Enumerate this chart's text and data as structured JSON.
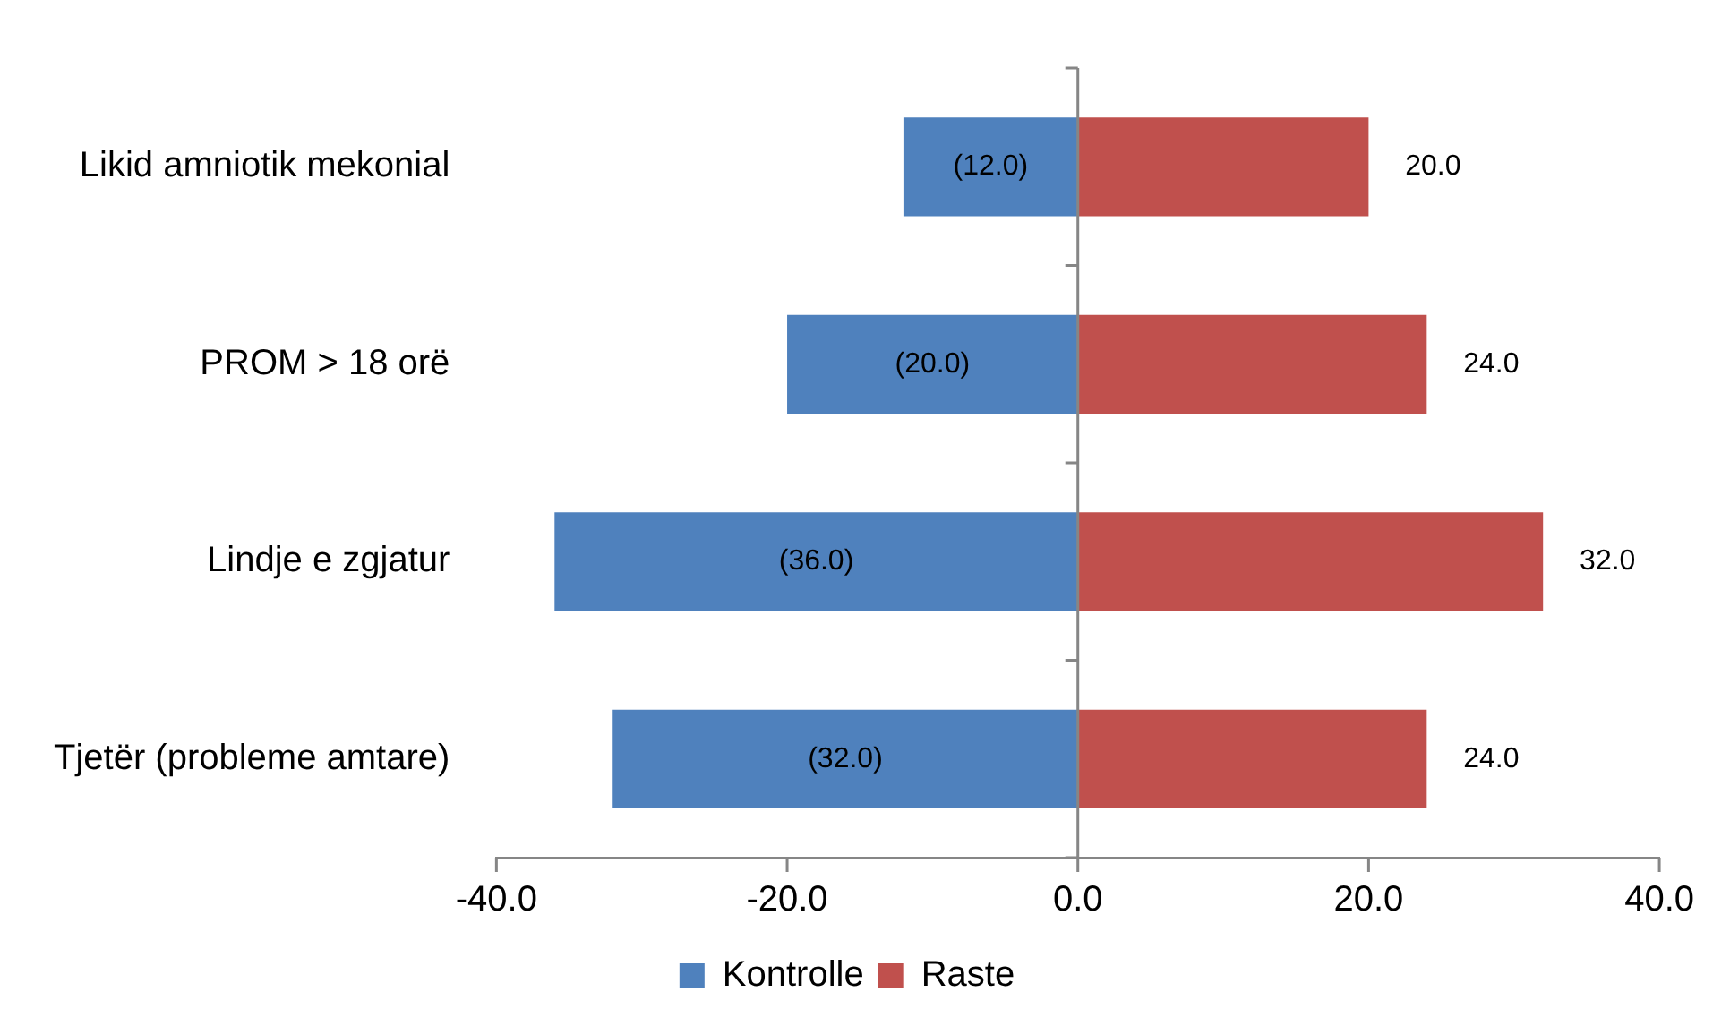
{
  "chart_data": {
    "type": "bar",
    "orientation": "horizontal",
    "stacked": true,
    "categories": [
      "Likid amniotik mekonial",
      "PROM > 18 orë",
      "Lindje e zgjatur",
      "Tjetër (probleme amtare)"
    ],
    "series": [
      {
        "name": "Kontrolle",
        "color": "#4f81bd",
        "values": [
          -12,
          -20,
          -36,
          -32
        ],
        "value_labels": [
          "(12.0)",
          "(20.0)",
          "(36.0)",
          "(32.0)"
        ]
      },
      {
        "name": "Raste",
        "color": "#c0504d",
        "values": [
          20,
          24,
          32,
          24
        ],
        "value_labels": [
          "20.0",
          "24.0",
          "32.0",
          "24.0"
        ]
      }
    ],
    "xlim": [
      -40,
      40
    ],
    "xticks": [
      {
        "value": -40,
        "label": "-40.0"
      },
      {
        "value": -20,
        "label": "-20.0"
      },
      {
        "value": 0,
        "label": "0.0"
      },
      {
        "value": 20,
        "label": "20.0"
      },
      {
        "value": 40,
        "label": "40.0"
      }
    ],
    "legend": "bottom"
  }
}
